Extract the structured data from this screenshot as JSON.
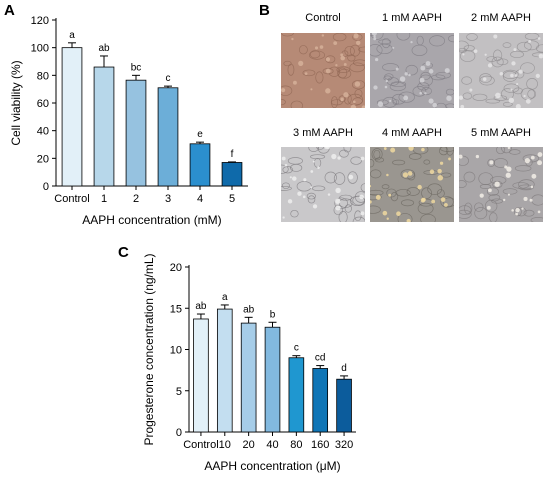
{
  "panels": {
    "a": "A",
    "b": "B",
    "c": "C"
  },
  "chart_data": [
    {
      "type": "bar",
      "ylabel": "Cell viability (%)",
      "xlabel": "AAPH concentration (mM)",
      "ylim": [
        0,
        120
      ],
      "yticks": [
        0,
        20,
        40,
        60,
        80,
        100,
        120
      ],
      "categories": [
        "Control",
        "1",
        "2",
        "3",
        "4",
        "5"
      ],
      "values": [
        100,
        86,
        76.5,
        71,
        30.5,
        17
      ],
      "errors": [
        3.5,
        8,
        3.5,
        1.2,
        1.2,
        0.4
      ],
      "letters": [
        "a",
        "ab",
        "bc",
        "c",
        "e",
        "f"
      ],
      "colors": [
        "#e2f0f8",
        "#b7d7ea",
        "#96c2e0",
        "#6caed8",
        "#2b8fce",
        "#0f6aaa"
      ]
    },
    {
      "type": "bar",
      "ylabel": "Progesterone concentration (ng/mL)",
      "xlabel": "AAPH concentration (μM)",
      "ylim": [
        0,
        20
      ],
      "yticks": [
        0,
        5,
        10,
        15,
        20
      ],
      "categories": [
        "Control",
        "10",
        "20",
        "40",
        "80",
        "160",
        "320"
      ],
      "values": [
        13.7,
        14.9,
        13.2,
        12.7,
        9.0,
        7.7,
        6.4
      ],
      "errors": [
        0.6,
        0.5,
        0.7,
        0.6,
        0.25,
        0.35,
        0.4
      ],
      "letters": [
        "ab",
        "a",
        "ab",
        "b",
        "c",
        "cd",
        "d"
      ],
      "colors": [
        "#e2f0f8",
        "#c3def0",
        "#a6cde8",
        "#82b9df",
        "#1f97d0",
        "#0f75b6",
        "#0c5c9c"
      ]
    }
  ],
  "micrographs": [
    {
      "label": "Control",
      "bg": "#b68a76",
      "dot": "#d6b09a",
      "cell": "#8f6552"
    },
    {
      "label": "1 mM AAPH",
      "bg": "#a9a6ab",
      "dot": "#d4d2d6",
      "cell": "#7e7a82"
    },
    {
      "label": "2 mM AAPH",
      "bg": "#c2c0c2",
      "dot": "#e6e5e6",
      "cell": "#8d8a8d"
    },
    {
      "label": "3 mM AAPH",
      "bg": "#c9c8ca",
      "dot": "#eeeeee",
      "cell": "#7b787c"
    },
    {
      "label": "4 mM AAPH",
      "bg": "#9a9690",
      "dot": "#f0d9a0",
      "cell": "#6b6660"
    },
    {
      "label": "5 mM AAPH",
      "bg": "#a9a6a8",
      "dot": "#f3efe8",
      "cell": "#7d797b"
    }
  ]
}
